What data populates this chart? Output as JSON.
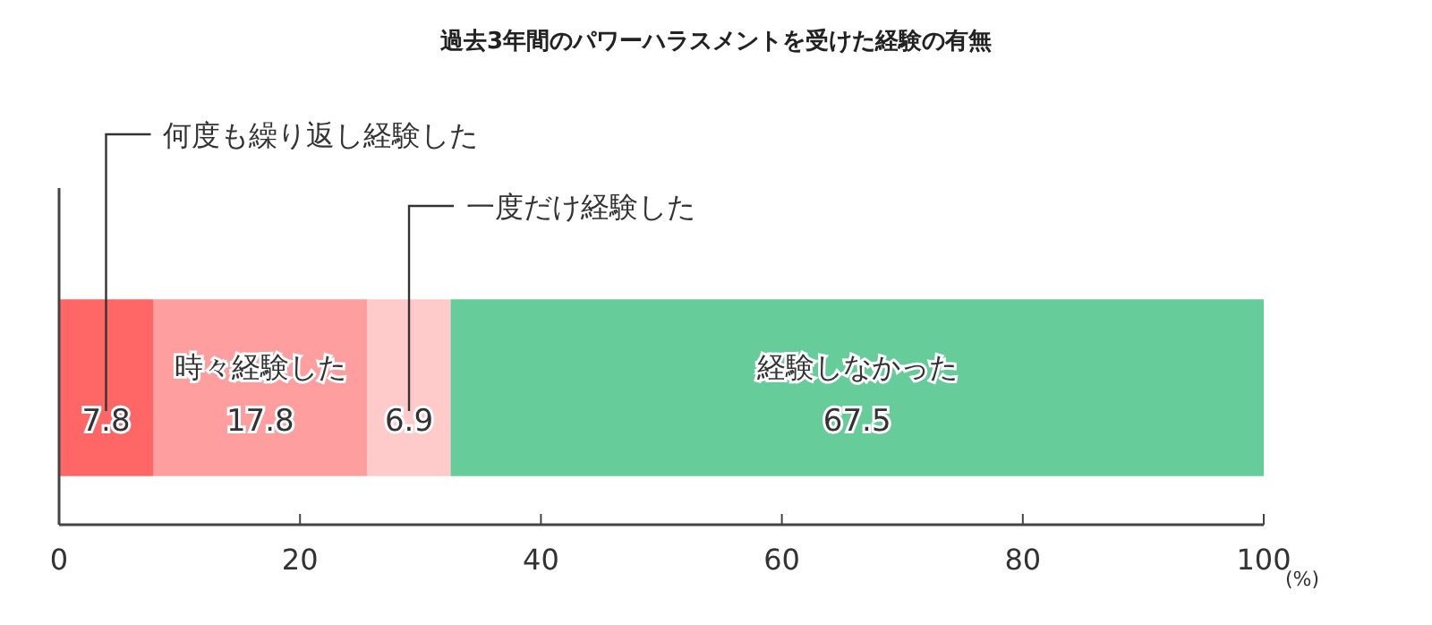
{
  "chart_data": {
    "type": "bar",
    "orientation": "horizontal",
    "stacked": true,
    "title": "過去3年間のパワーハラスメントを受けた経験の有無",
    "xlabel": "(%)",
    "categories": [
      null
    ],
    "xlim": [
      0,
      100
    ],
    "xticks": [
      0,
      20,
      40,
      60,
      80,
      100
    ],
    "data_labels": true,
    "grid": false,
    "series": [
      {
        "name": "何度も繰り返し経験した",
        "color": "#ff6666",
        "values": [
          7.8
        ]
      },
      {
        "name": "時々経験した",
        "color": "#ff9e9e",
        "values": [
          17.8
        ]
      },
      {
        "name": "一度だけ経験した",
        "color": "#ffcaca",
        "values": [
          6.9
        ]
      },
      {
        "name": "経験しなかった",
        "color": "#66cc99",
        "values": [
          67.5
        ]
      }
    ]
  }
}
